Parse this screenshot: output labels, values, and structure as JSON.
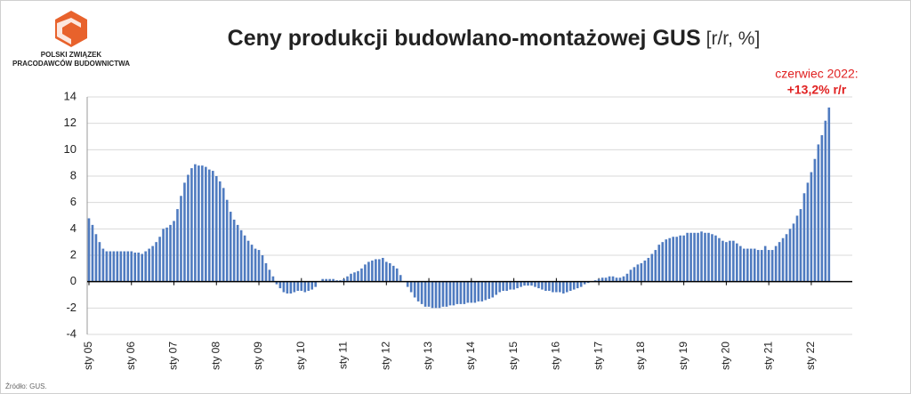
{
  "logo": {
    "line1": "POLSKI ZWIĄZEK",
    "line2": "PRACODAWCÓW BUDOWNICTWA"
  },
  "source": "Źródło: GUS.",
  "chart_data": {
    "type": "bar",
    "title": "Ceny produkcji budowlano-montażowej GUS",
    "unit": "[r/r, %]",
    "annotation": {
      "line1": "czerwiec 2022:",
      "line2": "+13,2% r/r"
    },
    "color": "#4f7bc0",
    "ylim": [
      -4,
      14
    ],
    "yticks": [
      -4,
      -2,
      0,
      2,
      4,
      6,
      8,
      10,
      12,
      14
    ],
    "grid": true,
    "categories": [
      "sty 05",
      null,
      null,
      null,
      null,
      null,
      null,
      null,
      null,
      null,
      null,
      null,
      "sty 06",
      null,
      null,
      null,
      null,
      null,
      null,
      null,
      null,
      null,
      null,
      null,
      "sty 07",
      null,
      null,
      null,
      null,
      null,
      null,
      null,
      null,
      null,
      null,
      null,
      "sty 08",
      null,
      null,
      null,
      null,
      null,
      null,
      null,
      null,
      null,
      null,
      null,
      "sty 09",
      null,
      null,
      null,
      null,
      null,
      null,
      null,
      null,
      null,
      null,
      null,
      "sty 10",
      null,
      null,
      null,
      null,
      null,
      null,
      null,
      null,
      null,
      null,
      null,
      "sty 11",
      null,
      null,
      null,
      null,
      null,
      null,
      null,
      null,
      null,
      null,
      null,
      "sty 12",
      null,
      null,
      null,
      null,
      null,
      null,
      null,
      null,
      null,
      null,
      null,
      "sty 13",
      null,
      null,
      null,
      null,
      null,
      null,
      null,
      null,
      null,
      null,
      null,
      "sty 14",
      null,
      null,
      null,
      null,
      null,
      null,
      null,
      null,
      null,
      null,
      null,
      "sty 15",
      null,
      null,
      null,
      null,
      null,
      null,
      null,
      null,
      null,
      null,
      null,
      "sty 16",
      null,
      null,
      null,
      null,
      null,
      null,
      null,
      null,
      null,
      null,
      null,
      "sty 17",
      null,
      null,
      null,
      null,
      null,
      null,
      null,
      null,
      null,
      null,
      null,
      "sty 18",
      null,
      null,
      null,
      null,
      null,
      null,
      null,
      null,
      null,
      null,
      null,
      "sty 19",
      null,
      null,
      null,
      null,
      null,
      null,
      null,
      null,
      null,
      null,
      null,
      "sty 20",
      null,
      null,
      null,
      null,
      null,
      null,
      null,
      null,
      null,
      null,
      null,
      "sty 21",
      null,
      null,
      null,
      null,
      null,
      null,
      null,
      null,
      null,
      null,
      null,
      "sty 22",
      null,
      null,
      null,
      null,
      null
    ],
    "values": [
      4.8,
      4.3,
      3.6,
      3.0,
      2.5,
      2.3,
      2.3,
      2.3,
      2.3,
      2.3,
      2.3,
      2.3,
      2.3,
      2.2,
      2.2,
      2.1,
      2.3,
      2.5,
      2.7,
      3.0,
      3.4,
      4.0,
      4.1,
      4.3,
      4.6,
      5.5,
      6.5,
      7.5,
      8.1,
      8.6,
      8.9,
      8.8,
      8.8,
      8.7,
      8.5,
      8.4,
      8.0,
      7.6,
      7.1,
      6.2,
      5.3,
      4.7,
      4.3,
      3.9,
      3.5,
      3.1,
      2.8,
      2.5,
      2.4,
      2.0,
      1.4,
      0.9,
      0.4,
      -0.2,
      -0.5,
      -0.8,
      -0.9,
      -0.9,
      -0.8,
      -0.7,
      -0.7,
      -0.8,
      -0.7,
      -0.6,
      -0.4,
      0.0,
      0.2,
      0.2,
      0.2,
      0.2,
      0.1,
      0.1,
      0.2,
      0.4,
      0.6,
      0.7,
      0.8,
      1.0,
      1.3,
      1.5,
      1.6,
      1.7,
      1.7,
      1.8,
      1.5,
      1.4,
      1.2,
      1.0,
      0.5,
      0.0,
      -0.4,
      -0.8,
      -1.2,
      -1.5,
      -1.7,
      -1.9,
      -1.9,
      -2.0,
      -2.0,
      -2.0,
      -1.9,
      -1.9,
      -1.8,
      -1.8,
      -1.7,
      -1.7,
      -1.7,
      -1.6,
      -1.6,
      -1.6,
      -1.5,
      -1.5,
      -1.4,
      -1.3,
      -1.2,
      -1.0,
      -0.8,
      -0.7,
      -0.7,
      -0.6,
      -0.6,
      -0.5,
      -0.4,
      -0.3,
      -0.3,
      -0.3,
      -0.4,
      -0.5,
      -0.6,
      -0.7,
      -0.7,
      -0.8,
      -0.8,
      -0.8,
      -0.9,
      -0.8,
      -0.7,
      -0.6,
      -0.5,
      -0.4,
      -0.2,
      -0.1,
      0.0,
      0.1,
      0.2,
      0.3,
      0.3,
      0.4,
      0.4,
      0.3,
      0.3,
      0.4,
      0.6,
      0.9,
      1.1,
      1.3,
      1.4,
      1.6,
      1.8,
      2.1,
      2.4,
      2.8,
      3.0,
      3.2,
      3.3,
      3.4,
      3.4,
      3.5,
      3.5,
      3.7,
      3.7,
      3.7,
      3.7,
      3.8,
      3.7,
      3.7,
      3.6,
      3.5,
      3.3,
      3.1,
      3.0,
      3.1,
      3.1,
      2.9,
      2.7,
      2.5,
      2.5,
      2.5,
      2.5,
      2.4,
      2.4,
      2.7,
      2.4,
      2.4,
      2.7,
      3.0,
      3.3,
      3.6,
      4.0,
      4.4,
      5.0,
      5.5,
      6.7,
      7.5,
      8.3,
      9.3,
      10.4,
      11.1,
      12.2,
      13.2
    ]
  }
}
